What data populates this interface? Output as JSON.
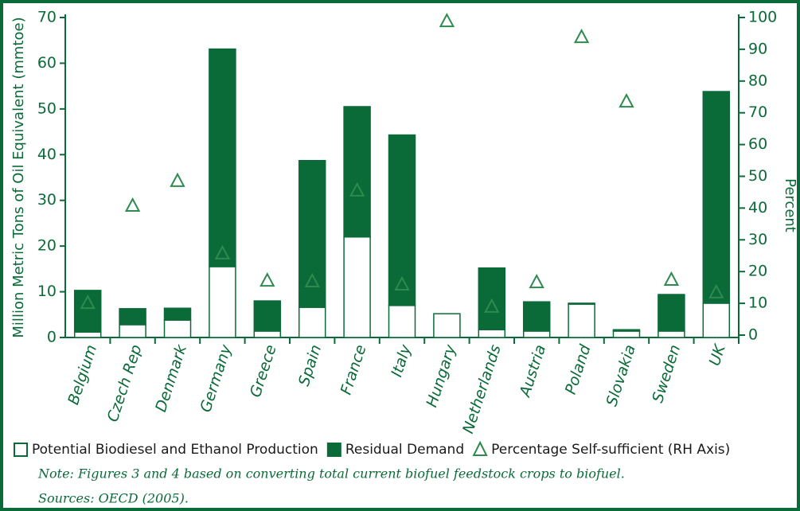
{
  "chart_data": {
    "type": "bar",
    "stacked": true,
    "y_label": "Million Metric Tons of Oil Equivalent (mmtoe)",
    "y2_label": "Percent",
    "categories": [
      "Belgium",
      "Czech Rep",
      "Denmark",
      "Germany",
      "Greece",
      "Spain",
      "France",
      "Italy",
      "Hungary",
      "Netherlands",
      "Austria",
      "Poland",
      "Slovakia",
      "Sweden",
      "UK"
    ],
    "series": [
      {
        "name": "Potential Biodiesel and Ethanol Production",
        "color": "#ffffff",
        "values": [
          1.2,
          2.8,
          3.8,
          15.5,
          1.4,
          6.6,
          22,
          7.0,
          5.2,
          1.7,
          1.4,
          7.3,
          1.4,
          1.4,
          7.5
        ]
      },
      {
        "name": "Residual Demand",
        "color": "#0b6b38",
        "values": [
          9.1,
          3.5,
          2.6,
          47.6,
          6.6,
          32.1,
          28.5,
          37.3,
          0,
          13.5,
          6.4,
          0.2,
          0.3,
          8.0,
          46.3
        ]
      },
      {
        "name": "Percentage Self-sufficient (RH Axis)",
        "color": "#2e8a4e",
        "type": "marker",
        "axis": "y2",
        "values": [
          10,
          40.6,
          48.4,
          25.6,
          17,
          16.8,
          45.4,
          15.8,
          98.7,
          8.8,
          16.5,
          93.7,
          73.4,
          17.3,
          13.3
        ]
      }
    ],
    "ylim": [
      0,
      70
    ],
    "yticks": [
      0,
      10,
      20,
      30,
      40,
      50,
      60,
      70
    ],
    "y2lim": [
      0,
      100
    ],
    "y2ticks": [
      0,
      10,
      20,
      30,
      40,
      50,
      60,
      70,
      80,
      90,
      100
    ],
    "notes": [
      "Note: Figures 3 and 4 based on converting total current biofuel feedstock crops to biofuel.",
      "Sources: OECD (2005)."
    ]
  }
}
